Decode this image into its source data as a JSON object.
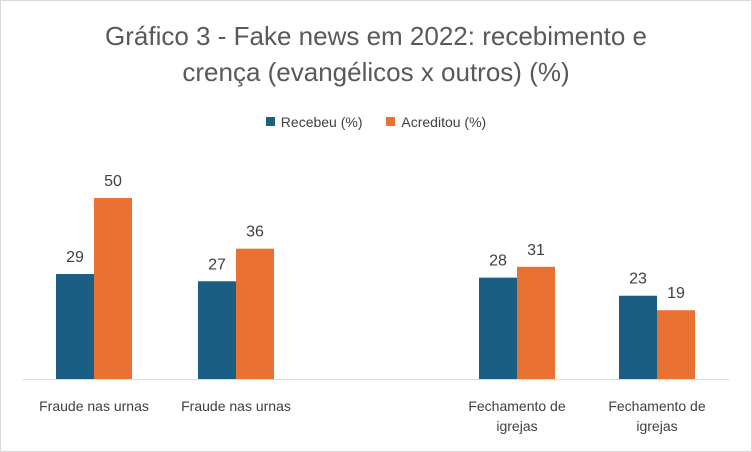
{
  "chart_data": {
    "type": "bar",
    "title_line1": "Gráfico 3 - Fake news em 2022: recebimento e",
    "title_line2": "crença (evangélicos x outros) (%)",
    "legend_position": "top",
    "grid": false,
    "categories": [
      [
        "Fraude nas urnas"
      ],
      [
        "Fraude nas urnas"
      ],
      [
        "Fechamento de",
        "igrejas"
      ],
      [
        "Fechamento de",
        "igrejas"
      ]
    ],
    "series": [
      {
        "name": "Recebeu (%)",
        "color": "#1b5e84",
        "values": [
          29,
          27,
          28,
          23
        ]
      },
      {
        "name": "Acreditou (%)",
        "color": "#e97132",
        "values": [
          50,
          36,
          31,
          19
        ]
      }
    ],
    "ylim": [
      0,
      60
    ]
  }
}
